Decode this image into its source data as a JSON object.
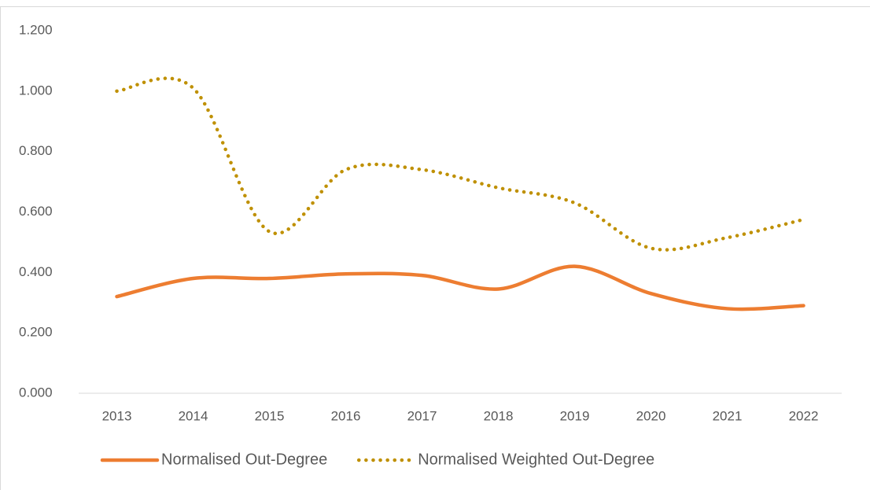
{
  "chart_data": {
    "type": "line",
    "categories": [
      "2013",
      "2014",
      "2015",
      "2016",
      "2017",
      "2018",
      "2019",
      "2020",
      "2021",
      "2022"
    ],
    "series": [
      {
        "name": "Normalised Out-Degree",
        "color": "#ed7d31",
        "style": "solid",
        "values": [
          0.32,
          0.38,
          0.38,
          0.395,
          0.39,
          0.345,
          0.42,
          0.33,
          0.28,
          0.29
        ]
      },
      {
        "name": "Normalised Weighted Out-Degree",
        "color": "#bf9000",
        "style": "dotted",
        "values": [
          1.0,
          1.01,
          0.535,
          0.74,
          0.74,
          0.68,
          0.63,
          0.48,
          0.515,
          0.575
        ]
      }
    ],
    "ylim": [
      0,
      1.2
    ],
    "yticks": [
      {
        "value": 0,
        "label": "0.000"
      },
      {
        "value": 0.2,
        "label": "0.200"
      },
      {
        "value": 0.4,
        "label": "0.400"
      },
      {
        "value": 0.6,
        "label": "0.600"
      },
      {
        "value": 0.8,
        "label": "0.800"
      },
      {
        "value": 1.0,
        "label": "1.000"
      },
      {
        "value": 1.2,
        "label": "1.200"
      }
    ],
    "grid": false,
    "legend": "bottom"
  }
}
